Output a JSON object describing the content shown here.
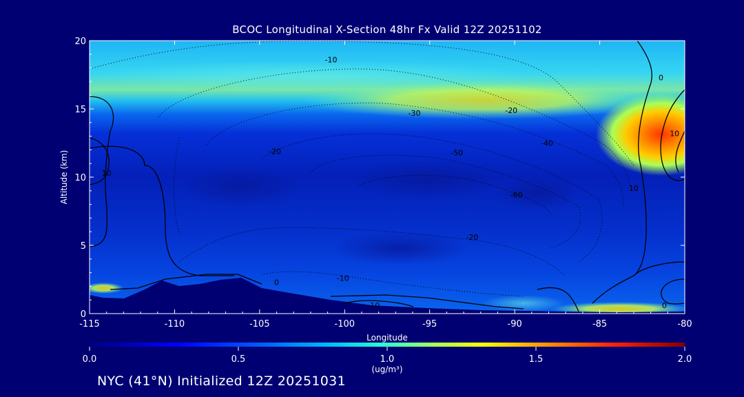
{
  "chart_data": {
    "type": "heatmap",
    "title": "BCOC Longitudinal X-Section 48hr  Fx Valid 12Z 20251102",
    "xlabel": "Longitude",
    "ylabel": "Altitude (km)",
    "xlim": [
      -115,
      -80
    ],
    "ylim": [
      0,
      20
    ],
    "x_ticks": [
      -115,
      -110,
      -105,
      -100,
      -95,
      -90,
      -85,
      -80
    ],
    "x_tick_labels": [
      "-115",
      "-110",
      "-105",
      "-100",
      "-95",
      "-90",
      "-85",
      "-80"
    ],
    "y_ticks": [
      0,
      5,
      10,
      15,
      20
    ],
    "y_tick_labels": [
      "0",
      "5",
      "10",
      "15",
      "20"
    ],
    "colorbar": {
      "min": 0.0,
      "max": 2.0,
      "ticks": [
        0.0,
        0.5,
        1.0,
        1.5,
        2.0
      ],
      "tick_labels": [
        "0.0",
        "0.5",
        "1.0",
        "1.5",
        "2.0"
      ],
      "units": "(ug/m³)",
      "colors": [
        "#000080",
        "#0000ff",
        "#0080ff",
        "#00ffff",
        "#80ff80",
        "#ffff00",
        "#ff8000",
        "#ff0000",
        "#800000"
      ]
    },
    "concentration_regions": [
      {
        "lon_min": -115,
        "lon_max": -80,
        "alt_min": 15.0,
        "alt_max": 20.0,
        "value": 0.75
      },
      {
        "lon_min": -115,
        "lon_max": -80,
        "alt_min": 13.5,
        "alt_max": 15.0,
        "value": 0.55
      },
      {
        "lon_min": -115,
        "lon_max": -80,
        "alt_min": 2.0,
        "alt_max": 13.5,
        "value": 0.3
      },
      {
        "lon_min": -87,
        "lon_max": -80,
        "alt_min": 11.5,
        "alt_max": 15.5,
        "value": 1.45
      },
      {
        "lon_min": -82,
        "lon_max": -80,
        "alt_min": 12.0,
        "alt_max": 14.0,
        "value": 1.7
      }
    ],
    "contour_labels": [
      {
        "text": "-10",
        "lon": -100.8,
        "alt": 18.6
      },
      {
        "text": "-30",
        "lon": -95.9,
        "alt": 14.7
      },
      {
        "text": "-20",
        "lon": -90.2,
        "alt": 14.9
      },
      {
        "text": "-40",
        "lon": -88.1,
        "alt": 12.5
      },
      {
        "text": "-50",
        "lon": -93.4,
        "alt": 11.8
      },
      {
        "text": "-20",
        "lon": -104.1,
        "alt": 11.9
      },
      {
        "text": "-60",
        "lon": -89.9,
        "alt": 8.7
      },
      {
        "text": "-20",
        "lon": -92.5,
        "alt": 5.6
      },
      {
        "text": "-10",
        "lon": -100.1,
        "alt": 2.6
      },
      {
        "text": "-10",
        "lon": -98.3,
        "alt": 0.6
      },
      {
        "text": "0",
        "lon": -104.0,
        "alt": 2.3
      },
      {
        "text": "0",
        "lon": -81.4,
        "alt": 17.3
      },
      {
        "text": "10",
        "lon": -80.6,
        "alt": 13.2
      },
      {
        "text": "10",
        "lon": -83.0,
        "alt": 9.2
      },
      {
        "text": "0",
        "lon": -81.2,
        "alt": 0.6
      },
      {
        "text": "10",
        "lon": -114.0,
        "alt": 10.3
      }
    ]
  },
  "footer": {
    "caption": "NYC (41°N) Initialized 12Z 20251031"
  },
  "colors": {
    "background": "#000073",
    "text": "#ffffff",
    "contour": "#000000"
  }
}
